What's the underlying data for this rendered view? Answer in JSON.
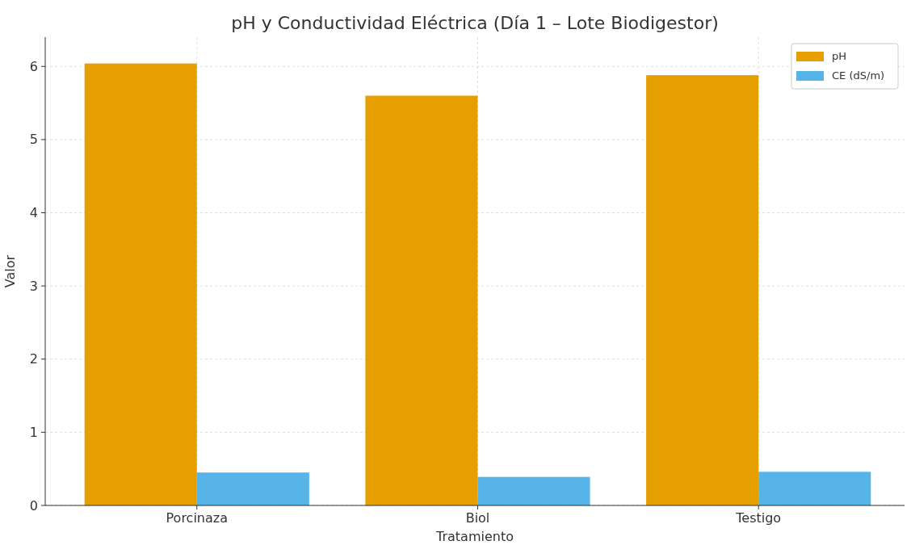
{
  "chart_data": {
    "type": "bar",
    "title": "pH y Conductividad Eléctrica (Día 1 – Lote Biodigestor)",
    "xlabel": "Tratamiento",
    "ylabel": "Valor",
    "categories": [
      "Porcinaza",
      "Biol",
      "Testigo"
    ],
    "series": [
      {
        "name": "pH",
        "color": "#e69f00",
        "values": [
          6.04,
          5.6,
          5.88
        ]
      },
      {
        "name": "CE (dS/m)",
        "color": "#56b4e9",
        "values": [
          0.45,
          0.39,
          0.46
        ]
      }
    ],
    "ylim": [
      0,
      6.4
    ],
    "yticks": [
      0,
      1,
      2,
      3,
      4,
      5,
      6
    ],
    "grid": true,
    "legend": "top right"
  }
}
